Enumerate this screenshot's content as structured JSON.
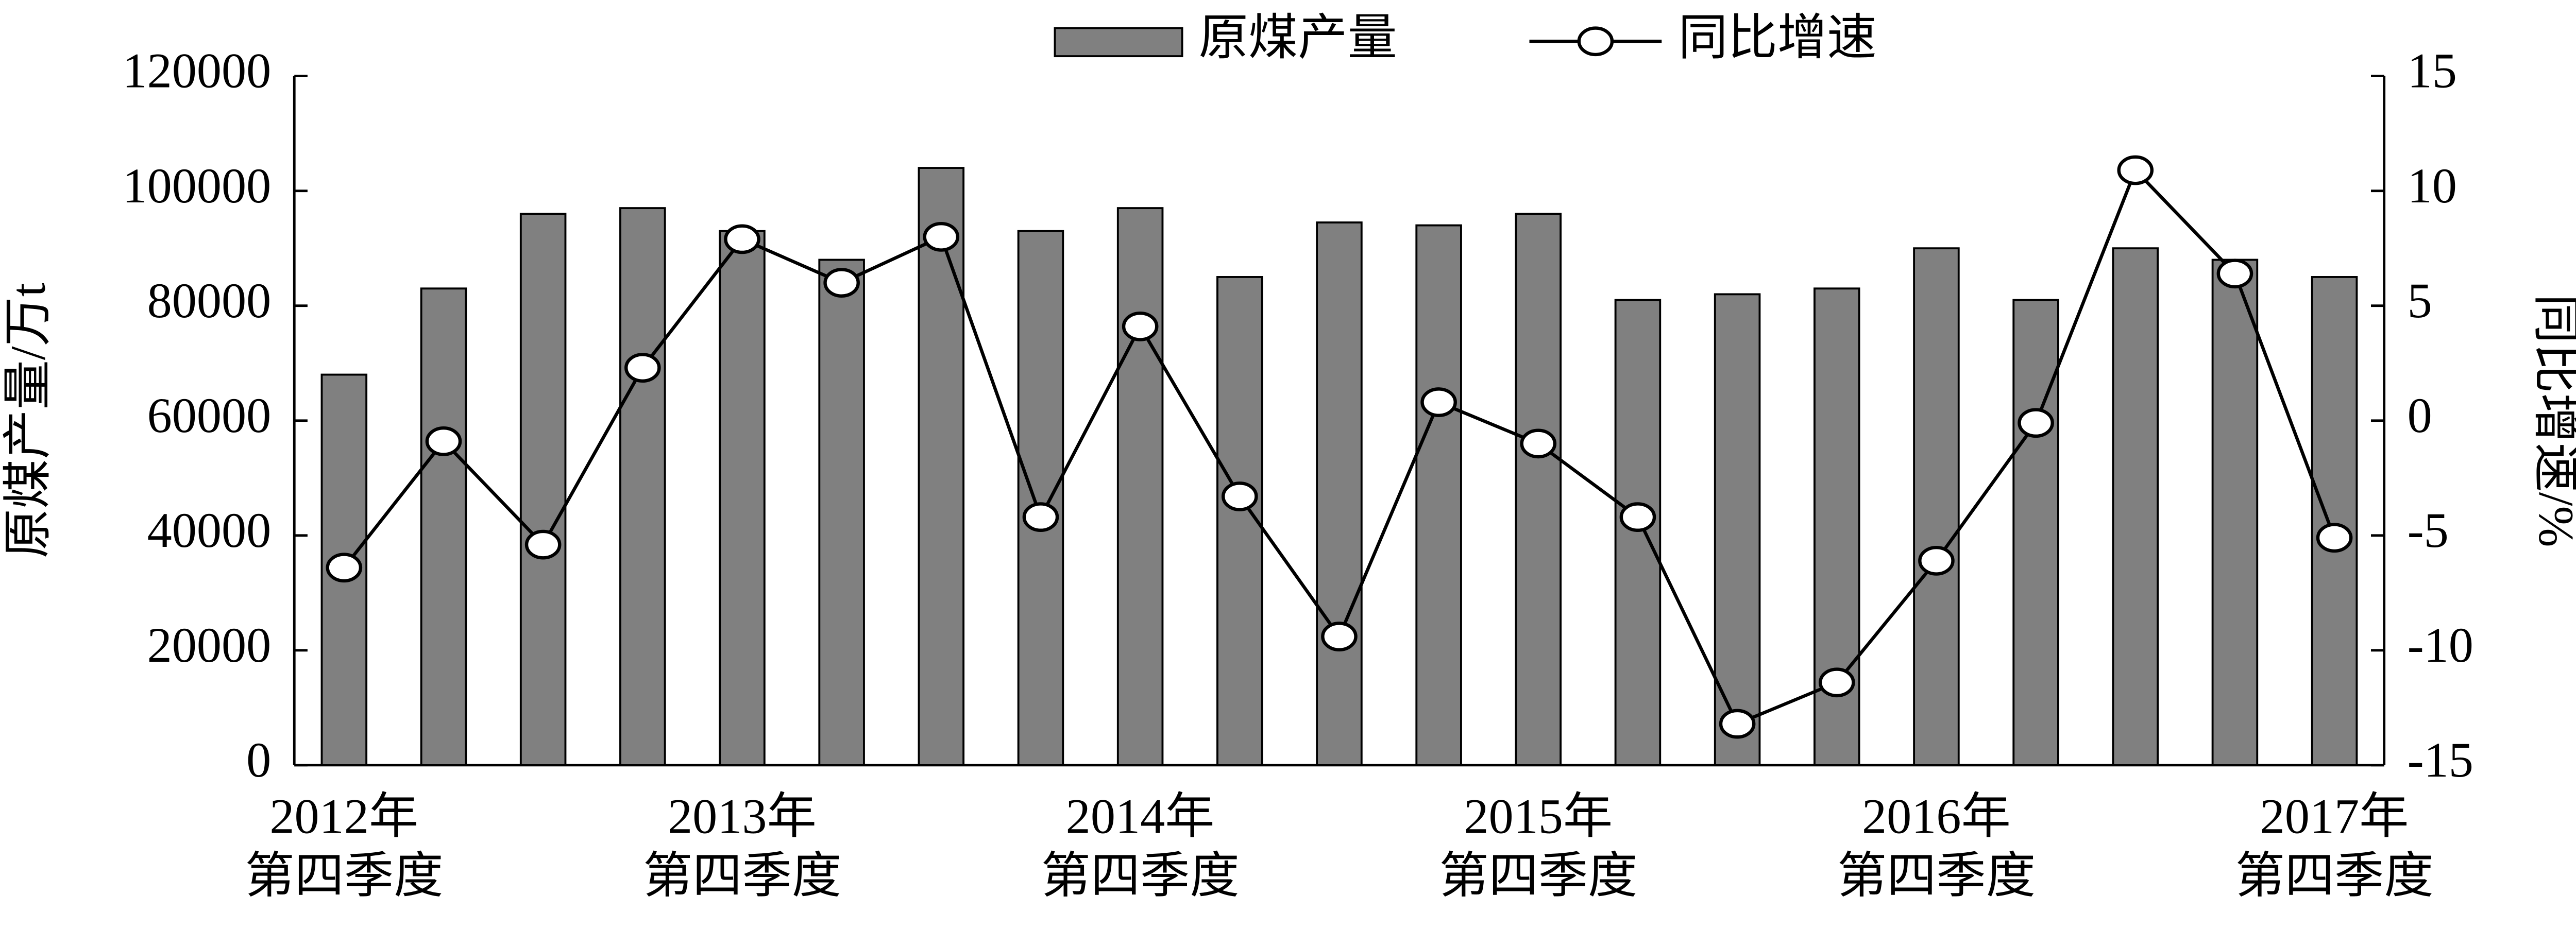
{
  "chart_data": {
    "type": "bar-line",
    "categories": [
      "2012年\n第四季度",
      null,
      null,
      null,
      "2013年\n第四季度",
      null,
      null,
      null,
      "2014年\n第四季度",
      null,
      null,
      null,
      "2015年\n第四季度",
      null,
      null,
      null,
      "2016年\n第四季度",
      null,
      null,
      null,
      "2017年\n第四季度"
    ],
    "series": [
      {
        "name": "原煤产量",
        "type": "bar",
        "color": "#808080",
        "values": [
          68000,
          83000,
          96000,
          97000,
          93000,
          88000,
          104000,
          93000,
          97000,
          85000,
          94500,
          94000,
          96000,
          81000,
          82000,
          83000,
          90000,
          81000,
          90000,
          88000,
          85000
        ]
      },
      {
        "name": "同比增速",
        "type": "line",
        "axis": "y2",
        "color": "#000000",
        "values": [
          -6.4,
          -0.9,
          -5.4,
          2.3,
          7.9,
          6.0,
          8.0,
          -4.2,
          4.1,
          -3.3,
          -9.4,
          0.8,
          -1.0,
          -4.2,
          -13.2,
          -11.4,
          -6.1,
          -0.1,
          10.9,
          6.4,
          -5.1
        ]
      }
    ],
    "ylabel": "原煤产量/万t",
    "y2label": "同比增速/%",
    "ylim": [
      0,
      120000
    ],
    "yticks": [
      0,
      20000,
      40000,
      60000,
      80000,
      100000,
      120000
    ],
    "y2lim": [
      -15,
      15
    ],
    "y2ticks": [
      -15,
      -10,
      -5,
      0,
      5,
      10,
      15
    ],
    "legend": "top"
  }
}
